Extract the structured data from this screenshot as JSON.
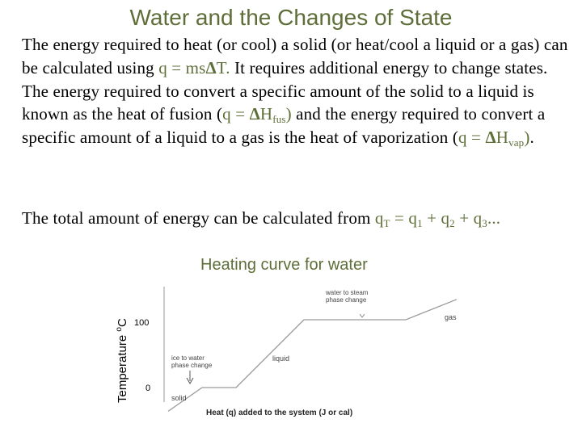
{
  "slide": {
    "title": "Water and the Changes of State",
    "para1": {
      "t1": "The energy required to heat (or cool) a solid (or heat/cool a liquid or a gas) can be calculated using ",
      "f1": "q = ms",
      "delta1": "Δ",
      "f1b": "T.",
      "t2": "  It requires additional energy to change states.  The energy required to convert a specific amount  of the solid to a liquid is known as the heat of fusion (",
      "f2a": "q = ",
      "delta2": "Δ",
      "f2b": "H",
      "f2sub": "fus",
      "f2c": ")",
      "t3": " and the energy required to convert a specific amount of a liquid to a gas is the heat of vaporization (",
      "f3a": "q = ",
      "delta3": "Δ",
      "f3b": "H",
      "f3sub": "vap",
      "f3c": ")",
      "t4": "."
    },
    "para2": {
      "t1": "The total amount of energy can be calculated from ",
      "qT": "q",
      "qT_sub": "T",
      "eq": " = q",
      "s1": "1",
      "plus1": " + q",
      "s2": "2",
      "plus2": " + q",
      "s3": "3",
      "dots": "..."
    }
  },
  "chart_data": {
    "type": "line",
    "title": "Heating curve for water",
    "ylabel": "Temperature",
    "ylabel_unit_sup": "o",
    "ylabel_unit": "C",
    "xlabel": "Heat (q) added to the system (J or cal)",
    "yticks": [
      "100",
      "0"
    ],
    "x": [
      0,
      1,
      2,
      4,
      7,
      8.5
    ],
    "y": [
      -35,
      0,
      0,
      100,
      100,
      130
    ],
    "annotations": {
      "fusion": [
        "ice to water",
        "phase change"
      ],
      "vaporization": [
        "water to steam",
        "phase change"
      ],
      "solid": "solid",
      "liquid": "liquid",
      "gas": "gas"
    }
  }
}
